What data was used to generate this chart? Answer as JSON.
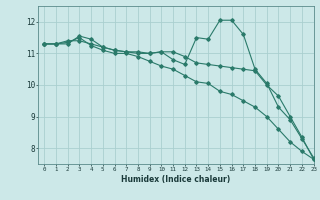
{
  "xlabel": "Humidex (Indice chaleur)",
  "ylabel": "",
  "background_color": "#cce8e8",
  "grid_color": "#aacfcf",
  "line_color": "#2a7a6a",
  "xlim": [
    -0.5,
    23
  ],
  "ylim": [
    7.5,
    12.5
  ],
  "yticks": [
    8,
    9,
    10,
    11,
    12
  ],
  "xticks": [
    0,
    1,
    2,
    3,
    4,
    5,
    6,
    7,
    8,
    9,
    10,
    11,
    12,
    13,
    14,
    15,
    16,
    17,
    18,
    19,
    20,
    21,
    22,
    23
  ],
  "series": [
    [
      11.3,
      11.3,
      11.3,
      11.55,
      11.45,
      11.2,
      11.1,
      11.05,
      11.05,
      11.0,
      11.05,
      10.8,
      10.65,
      11.5,
      11.45,
      12.05,
      12.05,
      11.6,
      10.5,
      10.05,
      9.3,
      8.9,
      8.3,
      7.7
    ],
    [
      11.3,
      11.3,
      11.4,
      11.4,
      11.3,
      11.2,
      11.1,
      11.05,
      11.0,
      11.0,
      11.05,
      11.05,
      10.9,
      10.7,
      10.65,
      10.6,
      10.55,
      10.5,
      10.45,
      10.0,
      9.65,
      9.0,
      8.35,
      7.65
    ],
    [
      11.3,
      11.3,
      11.35,
      11.5,
      11.25,
      11.1,
      11.0,
      11.0,
      10.9,
      10.75,
      10.6,
      10.5,
      10.3,
      10.1,
      10.05,
      9.8,
      9.7,
      9.5,
      9.3,
      9.0,
      8.6,
      8.2,
      7.9,
      7.65
    ]
  ]
}
